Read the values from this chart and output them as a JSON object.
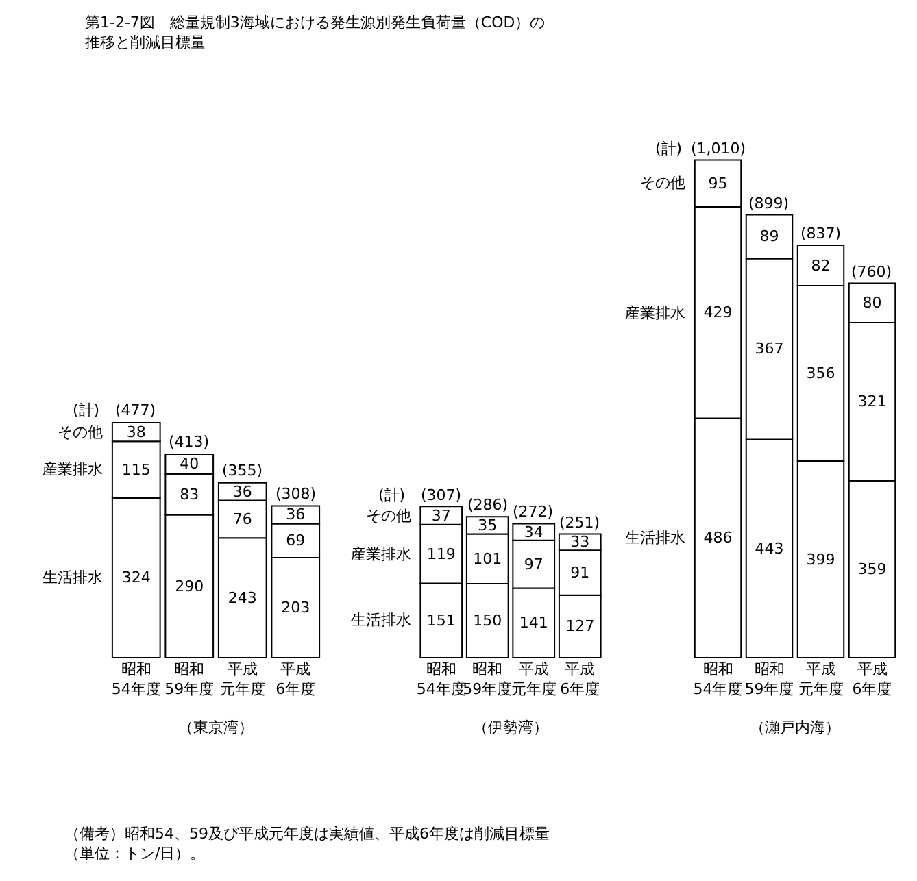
{
  "chart_data": [
    {
      "type": "bar",
      "stacked": true,
      "title": "第1-2-7図　総量規制3海域における発生源別発生負荷量（COD）の推移と削減目標量",
      "xlabel": "（東京湾）",
      "categories": [
        "昭和54年度",
        "昭和59年度",
        "平成元年度",
        "平成6年度"
      ],
      "data_labels": true,
      "series": [
        {
          "name": "生活排水",
          "color": "#ffffff",
          "values": [
            324,
            290,
            243,
            203
          ]
        },
        {
          "name": "産業排水",
          "color": "#ffffff",
          "values": [
            115,
            83,
            76,
            69
          ]
        },
        {
          "name": "その他",
          "color": "#ffffff",
          "values": [
            38,
            40,
            36,
            36
          ]
        }
      ],
      "totals": [
        "(477)",
        "(413)",
        "(355)",
        "(308)"
      ],
      "annotations": [
        "(計)",
        "（備考）昭和54、59及び平成元年度は実績値、平成6年度は削減目標量（単位：トン/日）。"
      ]
    },
    {
      "type": "bar",
      "stacked": true,
      "xlabel": "（伊勢湾）",
      "categories": [
        "昭和54年度",
        "昭和59年度",
        "平成元年度",
        "平成6年度"
      ],
      "data_labels": true,
      "series": [
        {
          "name": "生活排水",
          "color": "#ffffff",
          "values": [
            151,
            150,
            141,
            127
          ]
        },
        {
          "name": "産業排水",
          "color": "#ffffff",
          "values": [
            119,
            101,
            97,
            91
          ]
        },
        {
          "name": "その他",
          "color": "#ffffff",
          "values": [
            37,
            35,
            34,
            33
          ]
        }
      ],
      "totals": [
        "(307)",
        "(286)",
        "(272)",
        "(251)"
      ],
      "annotations": [
        "(計)"
      ]
    },
    {
      "type": "bar",
      "stacked": true,
      "xlabel": "（瀬戸内海）",
      "categories": [
        "昭和54年度",
        "昭和59年度",
        "平成元年度",
        "平成6年度"
      ],
      "data_labels": true,
      "series": [
        {
          "name": "生活排水",
          "color": "#ffffff",
          "values": [
            486,
            443,
            399,
            359
          ]
        },
        {
          "name": "産業排水",
          "color": "#ffffff",
          "values": [
            429,
            367,
            356,
            321
          ]
        },
        {
          "name": "その他",
          "color": "#ffffff",
          "values": [
            95,
            89,
            82,
            80
          ]
        }
      ],
      "totals": [
        "(1,010)",
        "(899)",
        "(837)",
        "(760)"
      ],
      "annotations": [
        "(計)"
      ]
    }
  ]
}
